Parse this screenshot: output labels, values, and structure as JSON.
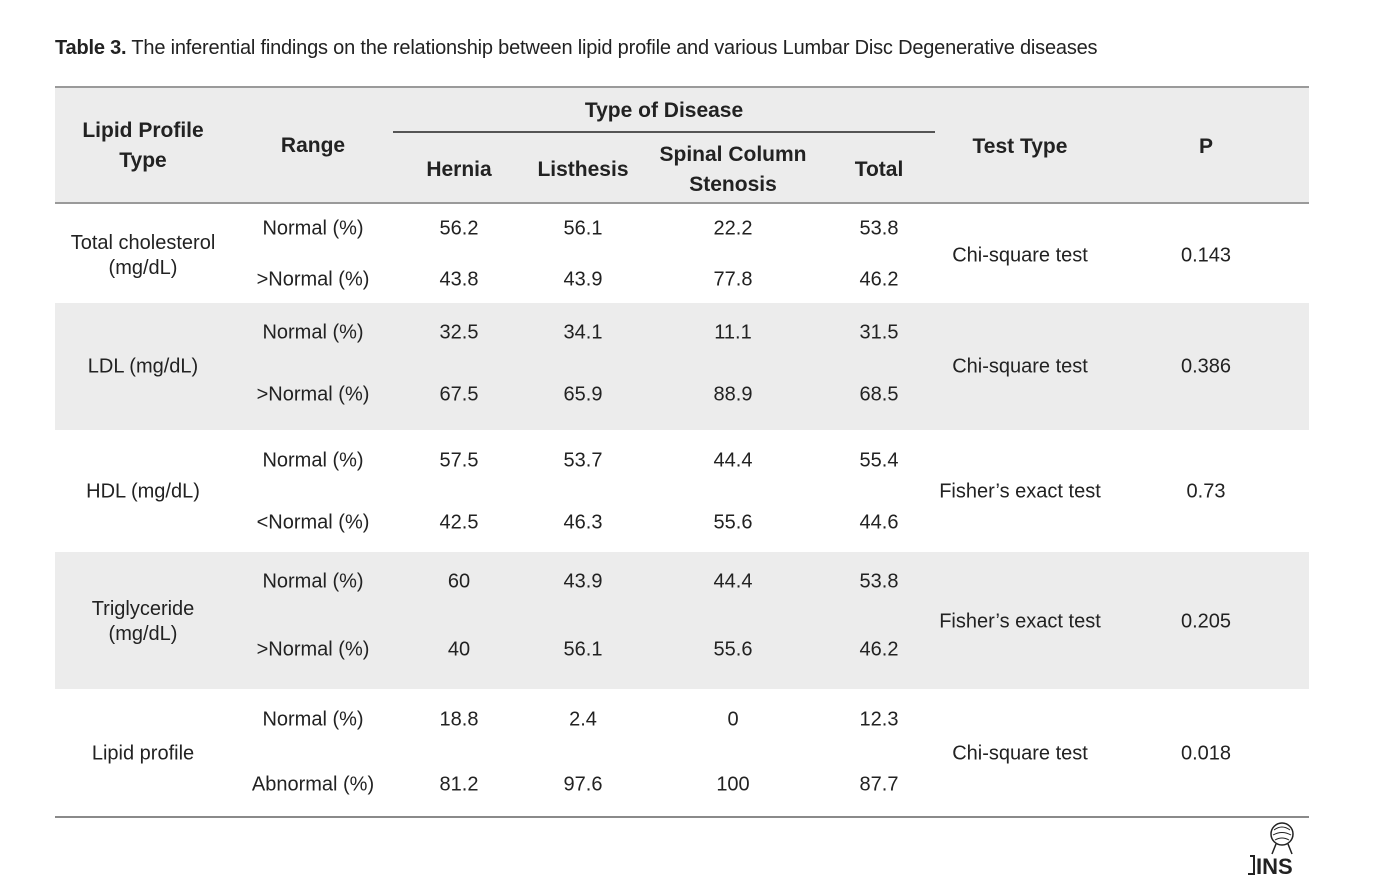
{
  "caption": {
    "label": "Table 3.",
    "text": " The inferential findings on the relationship between lipid profile and various Lumbar Disc Degenerative diseases"
  },
  "header": {
    "lipid_profile_type": "Lipid Profile Type",
    "range": "Range",
    "type_of_disease": "Type of Disease",
    "hernia": "Hernia",
    "listhesis": "Listhesis",
    "spinal_column_stenosis": "Spinal Column Stenosis",
    "total": "Total",
    "test_type": "Test Type",
    "p": "P"
  },
  "rows": [
    {
      "type": "Total cholesterol (mg/dL)",
      "test": "Chi-square test",
      "p": "0.143",
      "r1": {
        "range": "Normal (%)",
        "hernia": "56.2",
        "listhesis": "56.1",
        "stenosis": "22.2",
        "total": "53.8"
      },
      "r2": {
        "range": ">Normal (%)",
        "hernia": "43.8",
        "listhesis": "43.9",
        "stenosis": "77.8",
        "total": "46.2"
      }
    },
    {
      "type": "LDL (mg/dL)",
      "test": "Chi-square test",
      "p": "0.386",
      "r1": {
        "range": "Normal (%)",
        "hernia": "32.5",
        "listhesis": "34.1",
        "stenosis": "11.1",
        "total": "31.5"
      },
      "r2": {
        "range": ">Normal (%)",
        "hernia": "67.5",
        "listhesis": "65.9",
        "stenosis": "88.9",
        "total": "68.5"
      }
    },
    {
      "type": "HDL (mg/dL)",
      "test": "Fisher’s exact test",
      "p": "0.73",
      "r1": {
        "range": "Normal (%)",
        "hernia": "57.5",
        "listhesis": "53.7",
        "stenosis": "44.4",
        "total": "55.4"
      },
      "r2": {
        "range": "<Normal (%)",
        "hernia": "42.5",
        "listhesis": "46.3",
        "stenosis": "55.6",
        "total": "44.6"
      }
    },
    {
      "type": "Triglyceride (mg/dL)",
      "test": "Fisher’s exact test",
      "p": "0.205",
      "r1": {
        "range": "Normal (%)",
        "hernia": "60",
        "listhesis": "43.9",
        "stenosis": "44.4",
        "total": "53.8"
      },
      "r2": {
        "range": ">Normal (%)",
        "hernia": "40",
        "listhesis": "56.1",
        "stenosis": "55.6",
        "total": "46.2"
      }
    },
    {
      "type": "Lipid profile",
      "test": "Chi-square test",
      "p": "0.018",
      "r1": {
        "range": "Normal (%)",
        "hernia": "18.8",
        "listhesis": "2.4",
        "stenosis": "0",
        "total": "12.3"
      },
      "r2": {
        "range": "Abnormal (%)",
        "hernia": "81.2",
        "listhesis": "97.6",
        "stenosis": "100",
        "total": "87.7"
      }
    }
  ],
  "logo": {
    "text": "INS",
    "icon": "journal-logo-icon"
  }
}
